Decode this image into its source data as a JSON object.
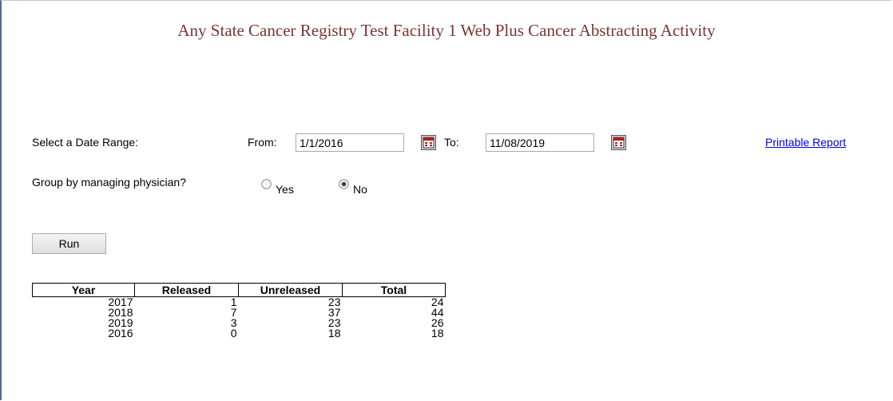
{
  "header": {
    "title": "Any State Cancer Registry Test Facility 1 Web Plus Cancer Abstracting Activity"
  },
  "form": {
    "date_range_label": "Select a Date Range:",
    "from_label": "From:",
    "from_value": "1/1/2016",
    "to_label": "To:",
    "to_value": "11/08/2019",
    "printable_link": "Printable Report",
    "group_label": "Group by managing physician?",
    "group_options": [
      "Yes",
      "No"
    ],
    "group_selected": 1,
    "run_button": "Run"
  },
  "table": {
    "headers": [
      "Year",
      "Released",
      "Unreleased",
      "Total"
    ],
    "rows": [
      [
        2017,
        1,
        23,
        24
      ],
      [
        2018,
        7,
        37,
        44
      ],
      [
        2019,
        3,
        23,
        26
      ],
      [
        2016,
        0,
        18,
        18
      ]
    ]
  }
}
